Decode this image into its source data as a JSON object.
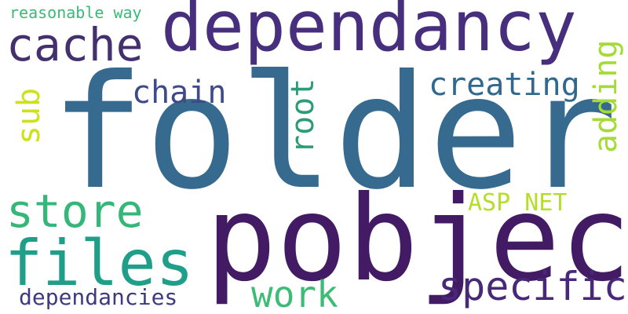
{
  "words": [
    {
      "id": "folder",
      "text": "folder",
      "color": "#366a8f"
    },
    {
      "id": "pobject",
      "text": "pobject",
      "color": "#431a64"
    },
    {
      "id": "dependancy",
      "text": "dependancy",
      "color": "#472f7d"
    },
    {
      "id": "cache",
      "text": "cache",
      "color": "#44306e"
    },
    {
      "id": "files",
      "text": "files",
      "color": "#1f9e89"
    },
    {
      "id": "store",
      "text": "store",
      "color": "#35b779"
    },
    {
      "id": "specific",
      "text": "specific",
      "color": "#482878"
    },
    {
      "id": "work",
      "text": "work",
      "color": "#3cbc75"
    },
    {
      "id": "dependancies",
      "text": "dependancies",
      "color": "#3d3a80"
    },
    {
      "id": "creating",
      "text": "creating",
      "color": "#31688e"
    },
    {
      "id": "chain",
      "text": "chain",
      "color": "#3e4a89"
    },
    {
      "id": "root",
      "text": "root",
      "color": "#2a9c77"
    },
    {
      "id": "adding",
      "text": "adding",
      "color": "#a5db36"
    },
    {
      "id": "sub",
      "text": "sub",
      "color": "#cde11d"
    },
    {
      "id": "asp-net",
      "text": "ASP NET",
      "color": "#b5de2b"
    },
    {
      "id": "reasonable-way",
      "text": "reasonable way",
      "color": "#3aba76"
    }
  ]
}
